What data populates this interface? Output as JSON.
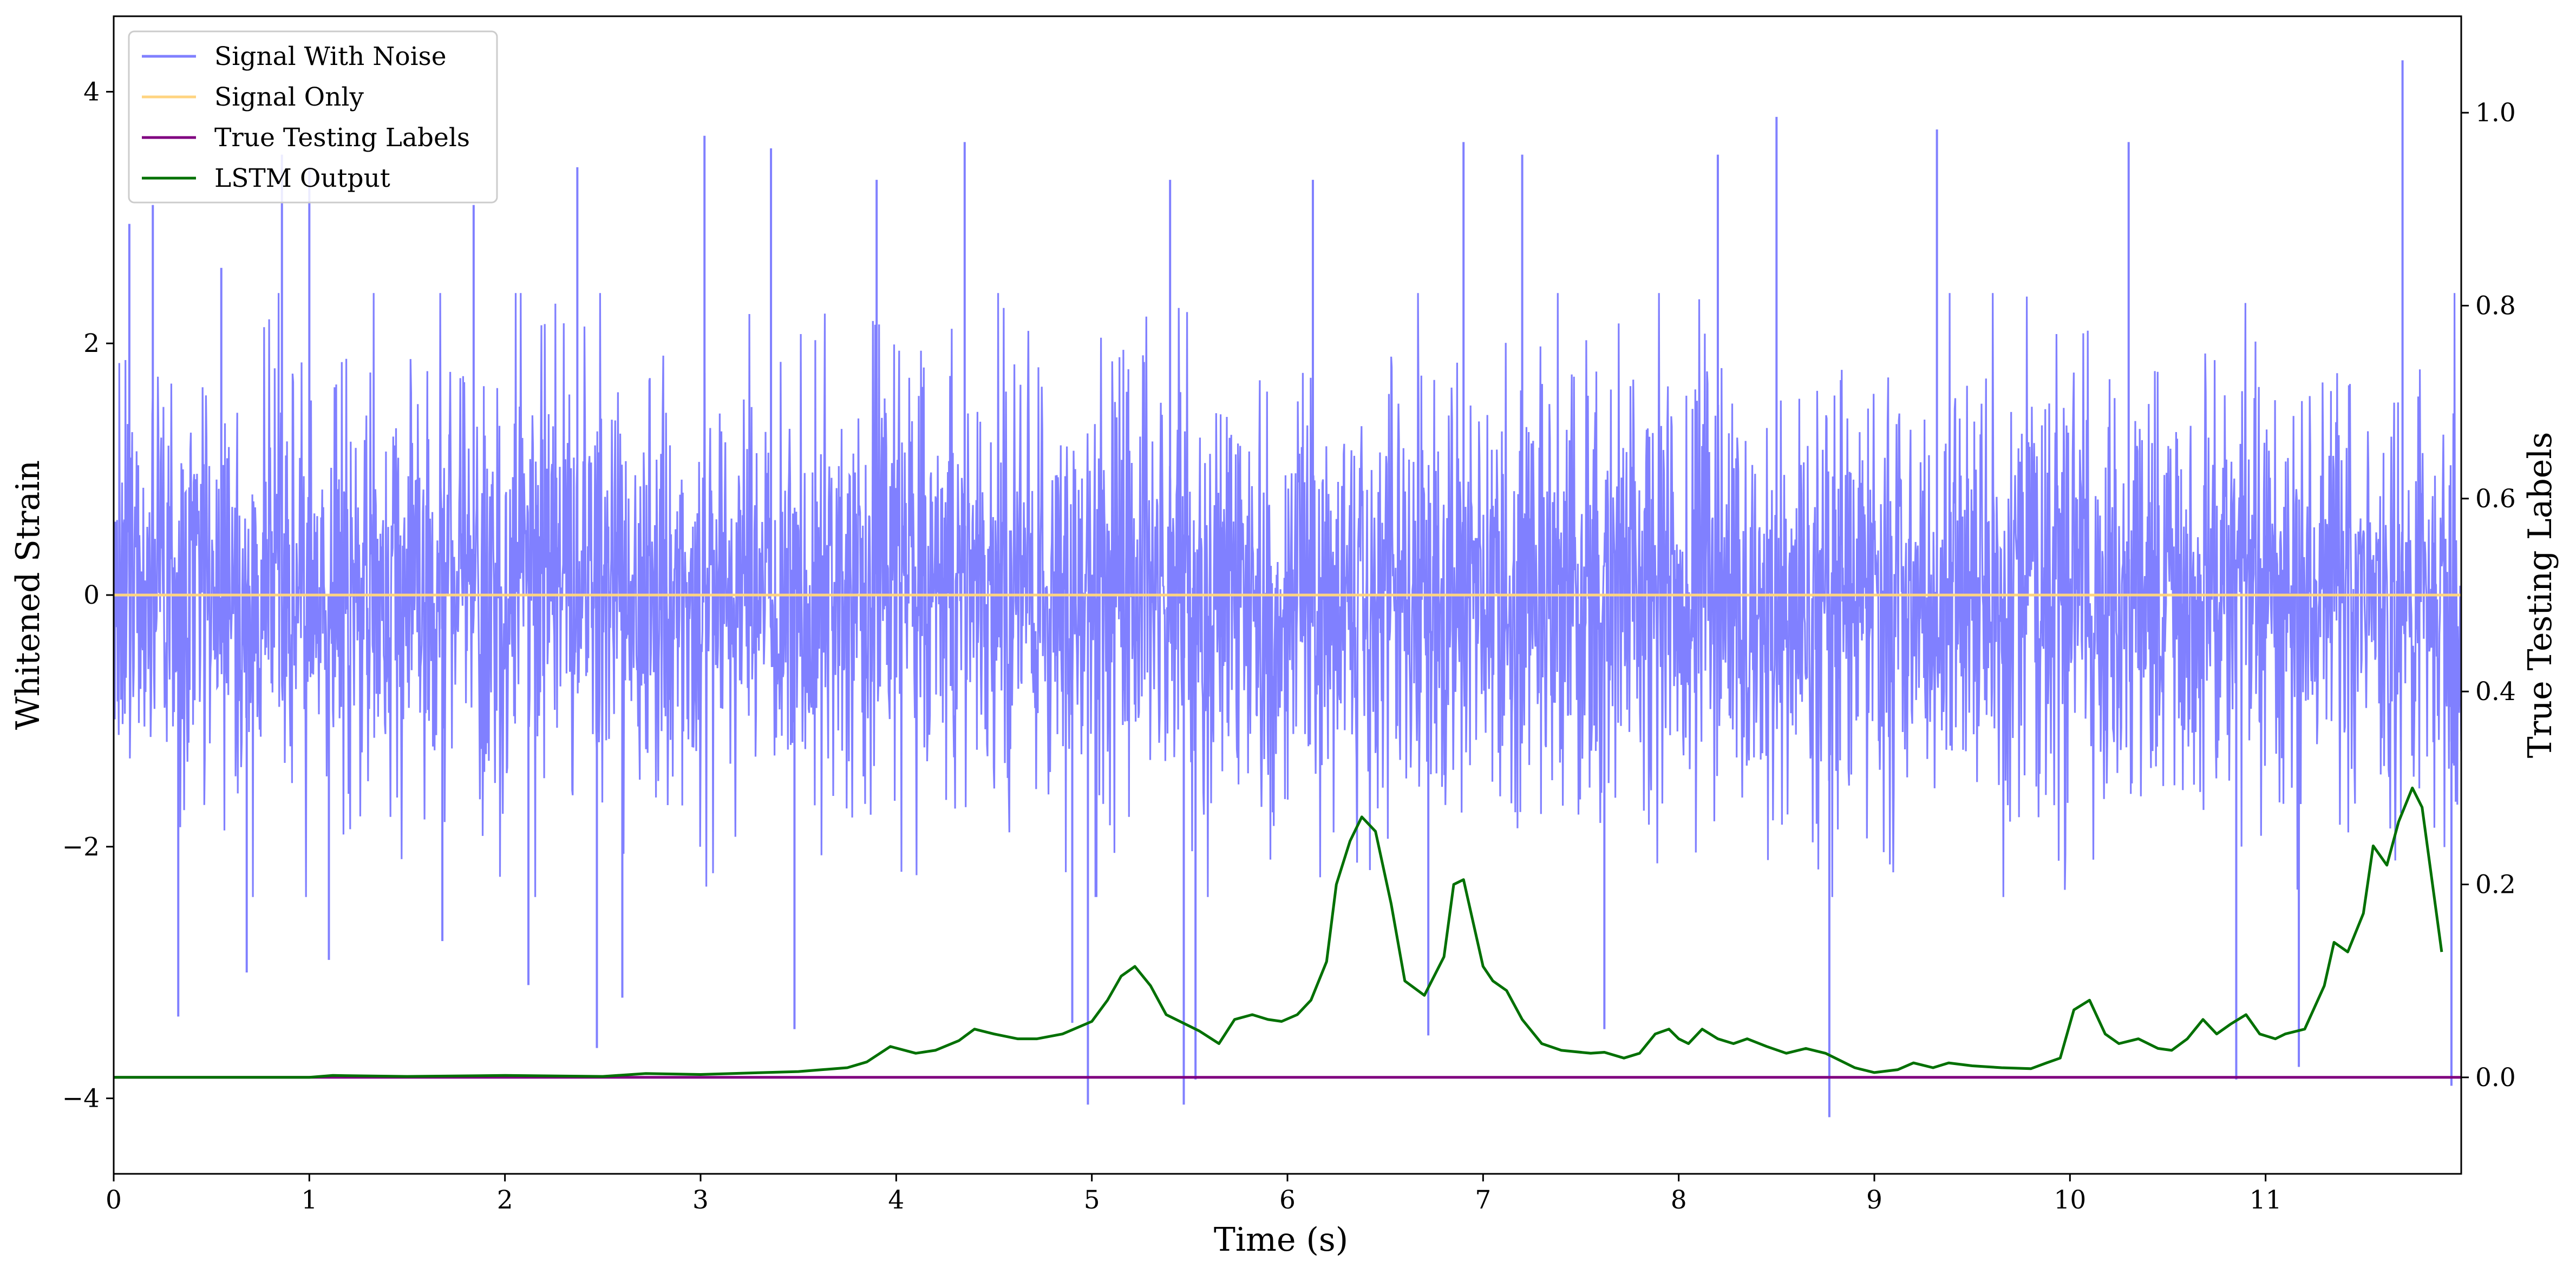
{
  "chart_data": {
    "type": "line",
    "xlabel": "Time (s)",
    "ylabel_left": "Whitened Strain",
    "ylabel_right": "True Testing Labels",
    "xlim": [
      0,
      12
    ],
    "ylim_left": [
      -4.6,
      4.6
    ],
    "ylim_right": [
      -0.1,
      1.1
    ],
    "x_ticks": [
      0,
      1,
      2,
      3,
      4,
      5,
      6,
      7,
      8,
      9,
      10,
      11
    ],
    "x_tick_labels": [
      "0",
      "1",
      "2",
      "3",
      "4",
      "5",
      "6",
      "7",
      "8",
      "9",
      "10",
      "11"
    ],
    "y_left_ticks": [
      -4,
      -2,
      0,
      2,
      4
    ],
    "y_left_tick_labels": [
      "−4",
      "−2",
      "0",
      "2",
      "4"
    ],
    "y_right_ticks": [
      0.0,
      0.2,
      0.4,
      0.6,
      0.8,
      1.0
    ],
    "y_right_tick_labels": [
      "0.0",
      "0.2",
      "0.4",
      "0.6",
      "0.8",
      "1.0"
    ],
    "grid": false,
    "legend_position": "upper-left",
    "series": [
      {
        "name": "Signal With Noise",
        "axis": "left",
        "color": "#8080ff",
        "description_stats": {
          "sigma": 1.0,
          "band": [
            -1.6,
            1.6
          ]
        },
        "spikes": [
          {
            "x": 0.08,
            "y": 2.95
          },
          {
            "x": 0.2,
            "y": 3.1
          },
          {
            "x": 0.33,
            "y": -3.35
          },
          {
            "x": 0.55,
            "y": 2.6
          },
          {
            "x": 0.68,
            "y": -3.0
          },
          {
            "x": 0.86,
            "y": 3.5
          },
          {
            "x": 1.0,
            "y": 3.4
          },
          {
            "x": 1.1,
            "y": -2.9
          },
          {
            "x": 1.68,
            "y": -2.75
          },
          {
            "x": 1.84,
            "y": 3.1
          },
          {
            "x": 2.12,
            "y": -3.1
          },
          {
            "x": 2.37,
            "y": 3.4
          },
          {
            "x": 2.47,
            "y": -3.6
          },
          {
            "x": 2.6,
            "y": -3.2
          },
          {
            "x": 3.02,
            "y": 3.65
          },
          {
            "x": 3.36,
            "y": 3.55
          },
          {
            "x": 3.48,
            "y": -3.45
          },
          {
            "x": 3.9,
            "y": 3.3
          },
          {
            "x": 4.35,
            "y": 3.6
          },
          {
            "x": 4.9,
            "y": -3.4
          },
          {
            "x": 4.98,
            "y": -4.05
          },
          {
            "x": 5.4,
            "y": 3.3
          },
          {
            "x": 5.47,
            "y": -4.05
          },
          {
            "x": 5.53,
            "y": -3.85
          },
          {
            "x": 6.13,
            "y": 3.3
          },
          {
            "x": 6.72,
            "y": -3.5
          },
          {
            "x": 6.9,
            "y": 3.6
          },
          {
            "x": 7.2,
            "y": 3.5
          },
          {
            "x": 7.62,
            "y": -3.45
          },
          {
            "x": 8.2,
            "y": 3.5
          },
          {
            "x": 8.5,
            "y": 3.8
          },
          {
            "x": 8.77,
            "y": -4.15
          },
          {
            "x": 9.32,
            "y": 3.7
          },
          {
            "x": 10.3,
            "y": 3.6
          },
          {
            "x": 10.85,
            "y": -3.85
          },
          {
            "x": 11.17,
            "y": -3.75
          },
          {
            "x": 11.7,
            "y": 4.25
          },
          {
            "x": 11.95,
            "y": -3.9
          }
        ]
      },
      {
        "name": "Signal Only",
        "axis": "left",
        "color": "#ffd480",
        "x": [
          0,
          12
        ],
        "y": [
          0,
          0
        ]
      },
      {
        "name": "True Testing Labels",
        "axis": "right",
        "color": "#800080",
        "x": [
          0,
          12
        ],
        "y": [
          0,
          0
        ]
      },
      {
        "name": "LSTM Output",
        "axis": "right",
        "color": "#007000",
        "x": [
          0.0,
          1.0,
          1.12,
          1.5,
          2.0,
          2.5,
          2.72,
          3.0,
          3.5,
          3.75,
          3.85,
          3.97,
          4.1,
          4.2,
          4.32,
          4.4,
          4.5,
          4.62,
          4.72,
          4.85,
          5.0,
          5.08,
          5.15,
          5.22,
          5.3,
          5.38,
          5.55,
          5.65,
          5.73,
          5.82,
          5.9,
          5.97,
          6.05,
          6.12,
          6.2,
          6.25,
          6.32,
          6.38,
          6.45,
          6.53,
          6.6,
          6.7,
          6.8,
          6.85,
          6.9,
          7.0,
          7.05,
          7.12,
          7.2,
          7.3,
          7.4,
          7.55,
          7.62,
          7.72,
          7.8,
          7.88,
          7.95,
          8.0,
          8.05,
          8.12,
          8.2,
          8.28,
          8.35,
          8.45,
          8.55,
          8.65,
          8.75,
          8.9,
          9.0,
          9.12,
          9.2,
          9.3,
          9.38,
          9.5,
          9.65,
          9.8,
          9.88,
          9.95,
          10.02,
          10.1,
          10.18,
          10.25,
          10.35,
          10.45,
          10.52,
          10.6,
          10.68,
          10.75,
          10.82,
          10.9,
          10.97,
          11.05,
          11.1,
          11.2,
          11.3,
          11.35,
          11.42,
          11.5,
          11.55,
          11.62,
          11.68,
          11.75,
          11.8,
          11.9
        ],
        "y": [
          0.0,
          0.0,
          0.002,
          0.001,
          0.002,
          0.001,
          0.004,
          0.003,
          0.006,
          0.01,
          0.016,
          0.032,
          0.025,
          0.028,
          0.038,
          0.05,
          0.045,
          0.04,
          0.04,
          0.045,
          0.058,
          0.08,
          0.105,
          0.115,
          0.095,
          0.065,
          0.048,
          0.035,
          0.06,
          0.065,
          0.06,
          0.058,
          0.065,
          0.08,
          0.12,
          0.2,
          0.245,
          0.27,
          0.255,
          0.18,
          0.1,
          0.085,
          0.125,
          0.2,
          0.205,
          0.115,
          0.1,
          0.09,
          0.06,
          0.035,
          0.028,
          0.025,
          0.026,
          0.02,
          0.025,
          0.045,
          0.05,
          0.04,
          0.035,
          0.05,
          0.04,
          0.035,
          0.04,
          0.032,
          0.025,
          0.03,
          0.025,
          0.01,
          0.005,
          0.008,
          0.015,
          0.01,
          0.015,
          0.012,
          0.01,
          0.009,
          0.015,
          0.02,
          0.07,
          0.08,
          0.045,
          0.035,
          0.04,
          0.03,
          0.028,
          0.04,
          0.06,
          0.045,
          0.055,
          0.065,
          0.045,
          0.04,
          0.045,
          0.05,
          0.095,
          0.14,
          0.13,
          0.17,
          0.24,
          0.22,
          0.265,
          0.3,
          0.28,
          0.13
        ]
      }
    ]
  }
}
